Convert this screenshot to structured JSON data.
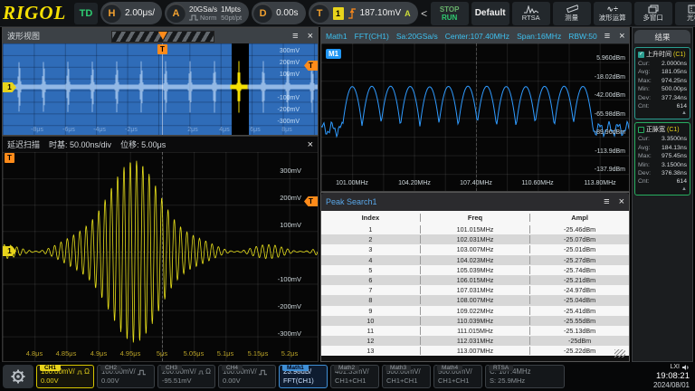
{
  "toolbar": {
    "logo": "RIGOL",
    "mode_label": "TD",
    "horizontal": {
      "badge": "H",
      "scale": "2.00μs/"
    },
    "acquire": {
      "badge": "A",
      "rate": "20GSa/s",
      "mode": "Norm",
      "depth": "1Mpts",
      "ratio": "50pt/pt"
    },
    "delay": {
      "badge": "D",
      "value": "0.00s"
    },
    "trigger": {
      "badge": "T",
      "source": "1",
      "level": "187.10mV",
      "suffix": "A"
    },
    "nav_left": "<",
    "nav_right": ">",
    "run_stop": {
      "stop": "STOP",
      "run": "RUN"
    },
    "default_label": "Default",
    "menu": [
      {
        "label": "RTSA"
      },
      {
        "label": "测量"
      },
      {
        "label": "波形运算"
      },
      {
        "label": "多窗口"
      },
      {
        "label": "光标"
      }
    ]
  },
  "waveform_view": {
    "title": "波形视图",
    "channel_badge": "1",
    "trigger_badge": "T",
    "v_labels": [
      "300mV",
      "200mV",
      "100mV",
      "-100mV",
      "-200mV",
      "-300mV"
    ],
    "t_labels": [
      "-8μs",
      "-6μs",
      "-4μs",
      "-2μs",
      "2μs",
      "4μs",
      "6μs",
      "8μs"
    ]
  },
  "zoom_view": {
    "title": "延迟扫描",
    "timebase_label": "时基: 50.00ns/div",
    "offset_label": "位移: 5.00μs",
    "channel_badge": "1",
    "trigger_badge": "T",
    "v_labels": [
      "300mV",
      "200mV",
      "100mV",
      "-100mV",
      "-200mV",
      "-300mV"
    ],
    "t_labels": [
      "4.8μs",
      "4.85μs",
      "4.9μs",
      "4.95μs",
      "5μs",
      "5.05μs",
      "5.1μs",
      "5.15μs",
      "5.2μs"
    ]
  },
  "fft": {
    "header": [
      "Math1",
      "FFT(CH1)",
      "Sa:20GSa/s",
      "Center:107.40MHz",
      "Span:16MHz",
      "RBW:50"
    ],
    "badge": "M1",
    "y_labels": [
      "5.960dBm",
      "-18.02dBm",
      "-42.00dBm",
      "-65.98dBm",
      "-89.96dBm",
      "-113.9dBm",
      "-137.9dBm"
    ],
    "x_labels": [
      "101.00MHz",
      "104.20MHz",
      "107.40MHz",
      "110.60MHz",
      "113.80MHz"
    ]
  },
  "peak_table": {
    "title": "Peak Search1",
    "columns": [
      "Index",
      "Freq",
      "Ampl"
    ],
    "rows": [
      {
        "index": "1",
        "freq": "101.015MHz",
        "ampl": "-25.46dBm"
      },
      {
        "index": "2",
        "freq": "102.031MHz",
        "ampl": "-25.07dBm"
      },
      {
        "index": "3",
        "freq": "103.007MHz",
        "ampl": "-25.01dBm"
      },
      {
        "index": "4",
        "freq": "104.023MHz",
        "ampl": "-25.27dBm"
      },
      {
        "index": "5",
        "freq": "105.039MHz",
        "ampl": "-25.74dBm"
      },
      {
        "index": "6",
        "freq": "106.015MHz",
        "ampl": "-25.21dBm"
      },
      {
        "index": "7",
        "freq": "107.031MHz",
        "ampl": "-24.97dBm"
      },
      {
        "index": "8",
        "freq": "108.007MHz",
        "ampl": "-25.04dBm"
      },
      {
        "index": "9",
        "freq": "109.022MHz",
        "ampl": "-25.41dBm"
      },
      {
        "index": "10",
        "freq": "110.039MHz",
        "ampl": "-25.55dBm"
      },
      {
        "index": "11",
        "freq": "111.015MHz",
        "ampl": "-25.13dBm"
      },
      {
        "index": "12",
        "freq": "112.031MHz",
        "ampl": "-25dBm"
      },
      {
        "index": "13",
        "freq": "113.007MHz",
        "ampl": "-25.22dBm"
      }
    ]
  },
  "results": {
    "title": "结果",
    "measurements": [
      {
        "name": "上升时间",
        "source": "(C1)",
        "stats": [
          [
            "Cur:",
            "2.0000ns"
          ],
          [
            "Avg:",
            "181.05ns"
          ],
          [
            "Max:",
            "974.25ns"
          ],
          [
            "Min:",
            "500.00ps"
          ],
          [
            "Dev:",
            "377.34ns"
          ],
          [
            "Cnt:",
            "614"
          ]
        ]
      },
      {
        "name": "正脉宽",
        "source": "(C1)",
        "stats": [
          [
            "Cur:",
            "3.3500ns"
          ],
          [
            "Avg:",
            "184.13ns"
          ],
          [
            "Max:",
            "975.45ns"
          ],
          [
            "Min:",
            "3.1500ns"
          ],
          [
            "Dev:",
            "376.38ns"
          ],
          [
            "Cnt:",
            "614"
          ]
        ]
      }
    ]
  },
  "bottom": {
    "channels": [
      {
        "tab": "CH1",
        "scale": "100.00mV/",
        "offset": "0.00V",
        "impedance": "Ω"
      },
      {
        "tab": "CH2",
        "scale": "100.00mV/",
        "offset": "0.00V",
        "impedance": ""
      },
      {
        "tab": "CH3",
        "scale": "200.00mV/",
        "offset": "-95.51mV",
        "impedance": "Ω"
      },
      {
        "tab": "CH4",
        "scale": "100.00mV/",
        "offset": "0.00V",
        "impedance": ""
      }
    ],
    "maths": [
      {
        "tab": "Math1",
        "line1": "23.98dB/",
        "line2": "FFT(CH1)"
      },
      {
        "tab": "Math2",
        "line1": "401.33mV/",
        "line2": "CH1+CH1"
      },
      {
        "tab": "Math3",
        "line1": "500.00mV/",
        "line2": "CH1+CH1"
      },
      {
        "tab": "Math4",
        "line1": "500.00mV/",
        "line2": "CH1+CH1"
      }
    ],
    "rtsa": {
      "tab": "RTSA",
      "line1": "C: 107.4MHz",
      "line2": "S: 25.9MHz"
    },
    "clock": {
      "lxi": "LXI",
      "time": "19:08:21",
      "date": "2024/08/01"
    }
  },
  "colors": {
    "ch1_yellow": "#e8d41b",
    "trigger_orange": "#ff8b1a",
    "fft_trace": "#2f9bff",
    "overlay_blue": "#2f6cb8",
    "run_green": "#2ecc71",
    "header_cyan": "#3ec1f0"
  },
  "chart_data": [
    {
      "id": "main-waveform",
      "type": "line",
      "panel": "波形视图",
      "x_unit": "μs",
      "x_range": [
        -10,
        10
      ],
      "time_per_div": "2.00μs",
      "volts_per_div": "100mV",
      "trigger_level_mV": 187.1,
      "burst_centers_us": [
        -8.95,
        -7.4,
        -5.85,
        -4.3,
        -2.75,
        -1.2,
        0.35,
        1.9,
        3.45,
        5.0,
        6.55,
        8.1,
        9.65
      ],
      "burst_amplitude_mV": 330,
      "zoom_window_center_us": 5.0,
      "zoom_window_width_us": 0.5
    },
    {
      "id": "zoom-waveform",
      "type": "line",
      "panel": "延迟扫描",
      "x_unit": "μs",
      "x_range": [
        4.75,
        5.25
      ],
      "time_per_div": "50.00ns",
      "volts_per_div": "100mV",
      "carrier_MHz": 100,
      "burst_center_us": 4.958,
      "burst_sigma_us": 0.046,
      "burst_amplitude_mV": 310,
      "baseline_ripple_mV": 26,
      "ripple_period_us": 0.105
    },
    {
      "id": "fft-spectrum",
      "type": "line",
      "panel": "Math1 FFT(CH1)",
      "x_unit": "MHz",
      "x_range": [
        99.4,
        115.4
      ],
      "center_MHz": 107.4,
      "span_MHz": 16,
      "db_per_div": 23.98,
      "y_top_dBm": 29.94,
      "y_bottom_dBm": -161.9,
      "noise_floor_dBm": -80,
      "peaks": [
        {
          "freq_MHz": 101.015,
          "ampl_dBm": -25.46
        },
        {
          "freq_MHz": 102.031,
          "ampl_dBm": -25.07
        },
        {
          "freq_MHz": 103.007,
          "ampl_dBm": -25.01
        },
        {
          "freq_MHz": 104.023,
          "ampl_dBm": -25.27
        },
        {
          "freq_MHz": 105.039,
          "ampl_dBm": -25.74
        },
        {
          "freq_MHz": 106.015,
          "ampl_dBm": -25.21
        },
        {
          "freq_MHz": 107.031,
          "ampl_dBm": -24.97
        },
        {
          "freq_MHz": 108.007,
          "ampl_dBm": -25.04
        },
        {
          "freq_MHz": 109.022,
          "ampl_dBm": -25.41
        },
        {
          "freq_MHz": 110.039,
          "ampl_dBm": -25.55
        },
        {
          "freq_MHz": 111.015,
          "ampl_dBm": -25.13
        },
        {
          "freq_MHz": 112.031,
          "ampl_dBm": -25.0
        },
        {
          "freq_MHz": 113.007,
          "ampl_dBm": -25.22
        }
      ]
    }
  ]
}
